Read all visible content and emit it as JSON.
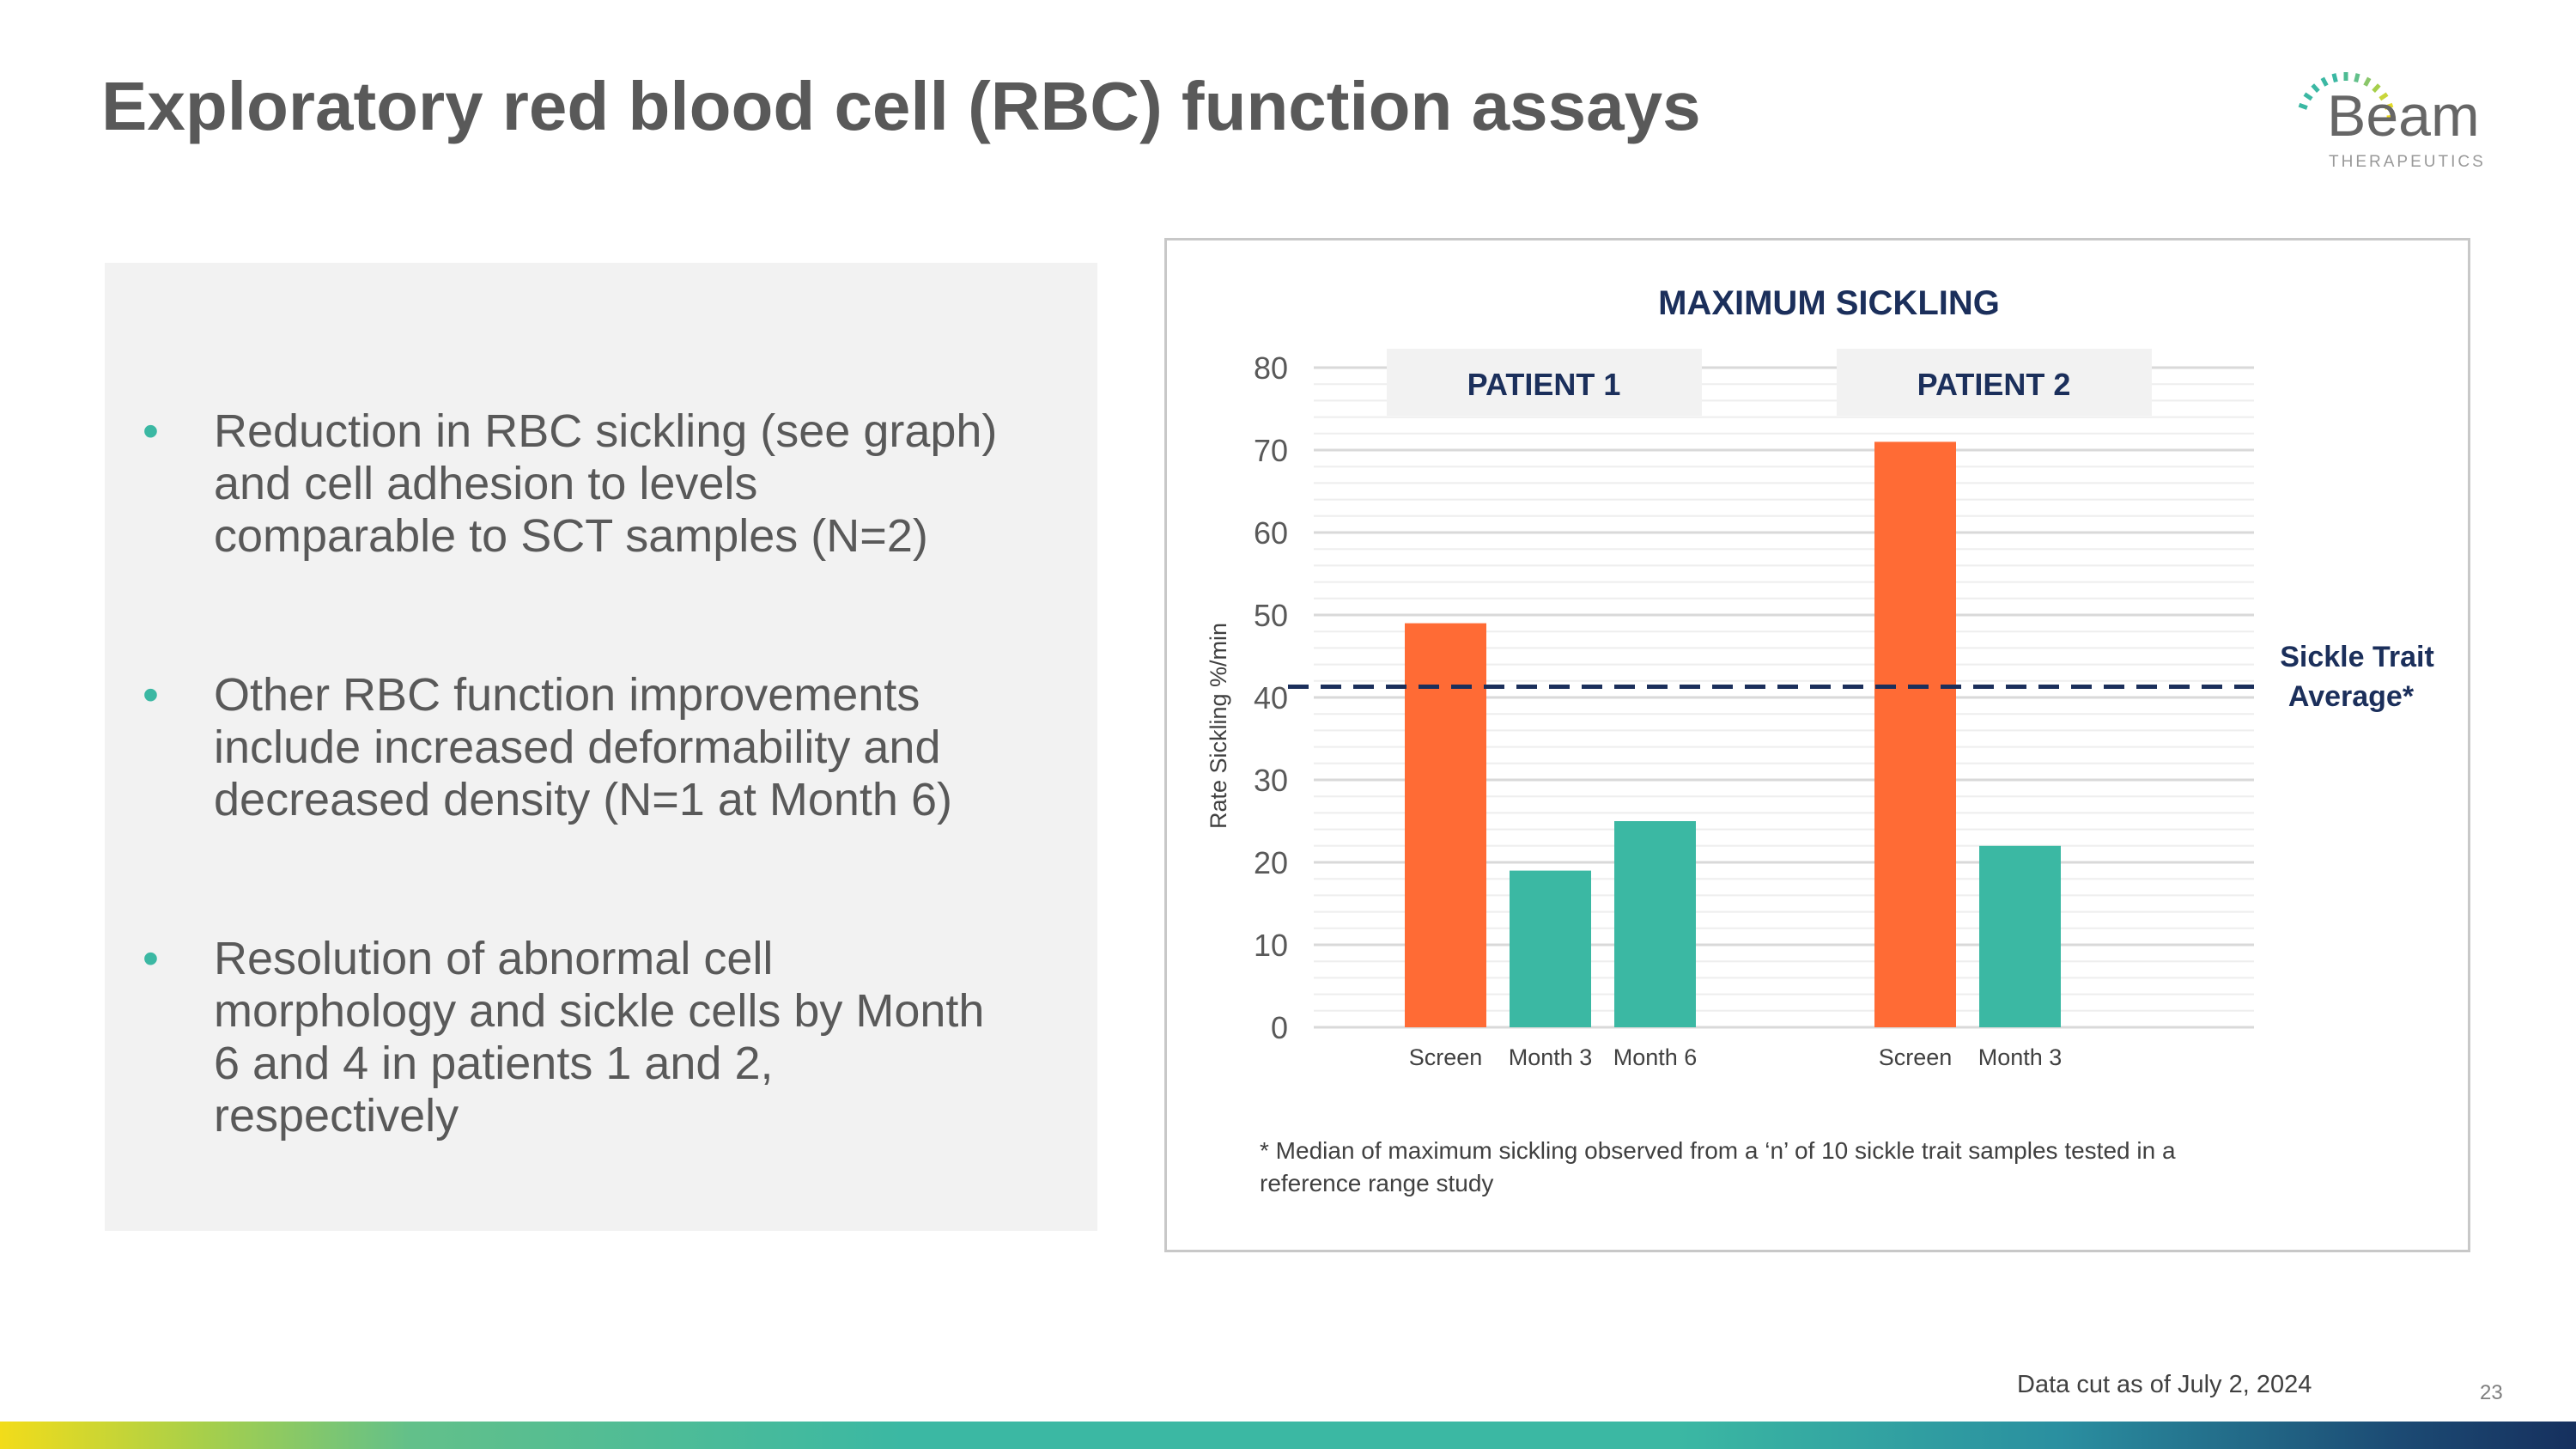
{
  "title": "Exploratory red blood cell (RBC) function assays",
  "logo": {
    "name": "Beam",
    "subtitle": "THERAPEUTICS"
  },
  "bullets": [
    "Reduction in RBC sickling (see graph) and cell adhesion to levels comparable to SCT samples (N=2)",
    "Other RBC function improvements include increased deformability and decreased density (N=1 at Month 6)",
    "Resolution of abnormal cell morphology and sickle cells by Month 6 and 4 in patients 1 and 2, respectively"
  ],
  "bullet_char": "•",
  "chart_data": {
    "type": "bar",
    "title": "MAXIMUM SICKLING",
    "ylabel": "Rate Sickling %/min",
    "ylim": [
      0,
      80
    ],
    "yticks": [
      0,
      10,
      20,
      30,
      40,
      50,
      60,
      70,
      80
    ],
    "grid": true,
    "groups": [
      {
        "name": "PATIENT 1",
        "categories": [
          "Screen",
          "Month 3",
          "Month 6"
        ],
        "values": [
          49,
          19,
          25
        ]
      },
      {
        "name": "PATIENT 2",
        "categories": [
          "Screen",
          "Month 3"
        ],
        "values": [
          71,
          22
        ]
      }
    ],
    "reference_line": {
      "label_line1": "Sickle Trait",
      "label_line2": "Average*",
      "value": 41.3,
      "style": "dashed"
    },
    "footnote_line1": "* Median of maximum sickling observed from a ‘n’ of 10 sickle trait samples tested in a",
    "footnote_line2": "reference range study",
    "colors": {
      "screen": "#ff6b35",
      "post": "#3bb8a3",
      "reference": "#1b2f5b",
      "title": "#1b2f5b"
    }
  },
  "footer": {
    "data_cut": "Data cut as of July 2, 2024",
    "page_number": "23"
  }
}
